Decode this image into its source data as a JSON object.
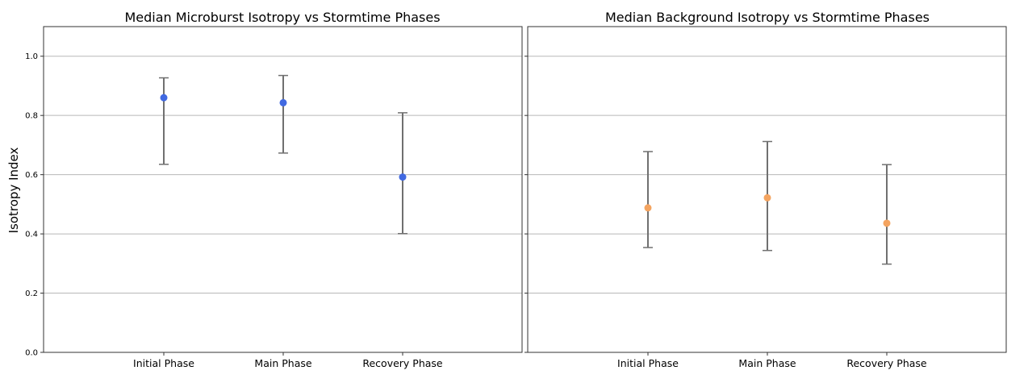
{
  "chart_data": [
    {
      "type": "scatter",
      "title": "Median Microburst Isotropy vs Stormtime Phases",
      "xlabel": "",
      "ylabel": "Isotropy Index",
      "categories": [
        "Initial Phase",
        "Main Phase",
        "Recovery Phase"
      ],
      "ylim": [
        0.0,
        1.1
      ],
      "yticks": [
        "0.0",
        "0.2",
        "0.4",
        "0.6",
        "0.8",
        "1.0"
      ],
      "grid": "horizontal",
      "marker_color": "#4169e1",
      "errorbar_color": "#707070",
      "series": [
        {
          "values": [
            0.86,
            0.843,
            0.592
          ],
          "error_low": [
            0.635,
            0.673,
            0.401
          ],
          "error_high": [
            0.927,
            0.935,
            0.809
          ]
        }
      ]
    },
    {
      "type": "scatter",
      "title": "Median Background Isotropy vs Stormtime Phases",
      "xlabel": "",
      "ylabel": "",
      "categories": [
        "Initial Phase",
        "Main Phase",
        "Recovery Phase"
      ],
      "ylim": [
        0.0,
        1.1
      ],
      "yticks": [],
      "grid": "horizontal",
      "marker_color": "#f4a460",
      "errorbar_color": "#707070",
      "series": [
        {
          "values": [
            0.488,
            0.522,
            0.436
          ],
          "error_low": [
            0.354,
            0.344,
            0.298
          ],
          "error_high": [
            0.678,
            0.712,
            0.634
          ]
        }
      ]
    }
  ]
}
